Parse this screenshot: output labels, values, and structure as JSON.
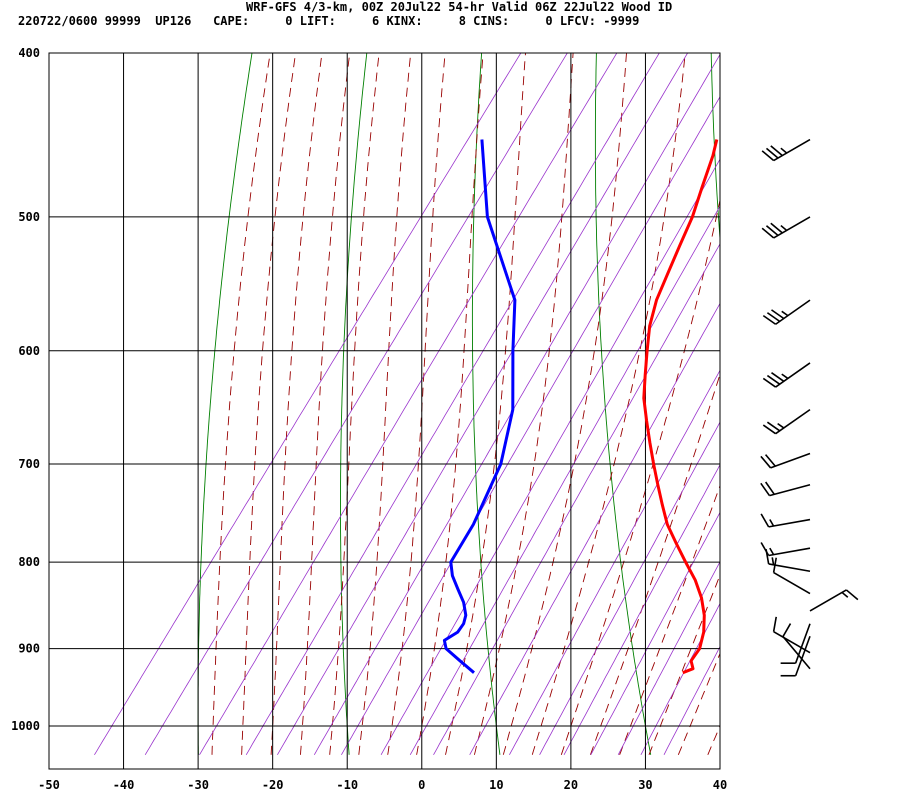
{
  "header": {
    "title": "WRF-GFS 4/3-km, 00Z 20Jul22 54-hr Valid 06Z 22Jul22 Wood ID",
    "stats": "220722/0600 99999  UP126   CAPE:     0 LIFT:     6 KINX:     8 CINS:     0 LFCV: -9999"
  },
  "colors": {
    "temperature": "#ff0000",
    "dewpoint": "#0000ff",
    "isotherms_grid": "#000000",
    "dry_adiabats": "#007f00",
    "moist_adiabats": "#990000",
    "mixing_ratio": "#9933cc",
    "wind_barbs": "#000000"
  },
  "chart_data": {
    "type": "line",
    "skew_t": true,
    "y_scale": "log",
    "grid": true,
    "xlim": [
      -50,
      40
    ],
    "ylim": [
      1040,
      400
    ],
    "x_ticks": [
      "-50",
      "-40",
      "-30",
      "-20",
      "-10",
      "0",
      "10",
      "20",
      "30",
      "40"
    ],
    "y_ticks": [
      "400",
      "500",
      "600",
      "700",
      "800",
      "900",
      "1000"
    ],
    "temperature": {
      "p": [
        930,
        925,
        915,
        900,
        880,
        860,
        840,
        820,
        800,
        780,
        760,
        740,
        720,
        700,
        680,
        660,
        640,
        620,
        600,
        580,
        560,
        540,
        520,
        500,
        480,
        460,
        450
      ],
      "t": [
        30,
        31,
        30,
        30,
        29,
        27.5,
        25.5,
        23,
        20,
        17,
        14,
        11.5,
        9,
        6.5,
        4,
        1.5,
        -1,
        -3,
        -5,
        -7,
        -8.5,
        -9.5,
        -10.5,
        -11.5,
        -13,
        -14.5,
        -15.5
      ]
    },
    "dewpoint": {
      "p": [
        930,
        925,
        915,
        900,
        890,
        880,
        870,
        860,
        845,
        830,
        815,
        800,
        760,
        700,
        650,
        600,
        560,
        500,
        450
      ],
      "td": [
        2,
        1,
        -1,
        -4,
        -5,
        -4,
        -4,
        -4.5,
        -6,
        -8,
        -10,
        -11.5,
        -12,
        -14,
        -17.5,
        -23,
        -27.5,
        -39,
        -47
      ]
    },
    "wind_barbs": [
      {
        "p": 450,
        "dir": 240,
        "spd": 35
      },
      {
        "p": 500,
        "dir": 240,
        "spd": 35
      },
      {
        "p": 560,
        "dir": 235,
        "spd": 35
      },
      {
        "p": 610,
        "dir": 235,
        "spd": 35
      },
      {
        "p": 650,
        "dir": 235,
        "spd": 25
      },
      {
        "p": 690,
        "dir": 250,
        "spd": 20
      },
      {
        "p": 720,
        "dir": 255,
        "spd": 20
      },
      {
        "p": 755,
        "dir": 260,
        "spd": 15
      },
      {
        "p": 785,
        "dir": 260,
        "spd": 15
      },
      {
        "p": 810,
        "dir": 280,
        "spd": 15
      },
      {
        "p": 835,
        "dir": 300,
        "spd": 10
      },
      {
        "p": 855,
        "dir": 60,
        "spd": 15
      },
      {
        "p": 870,
        "dir": 200,
        "spd": 10
      },
      {
        "p": 885,
        "dir": 200,
        "spd": 10
      },
      {
        "p": 905,
        "dir": 300,
        "spd": 10
      },
      {
        "p": 925,
        "dir": 320,
        "spd": 10
      }
    ]
  }
}
